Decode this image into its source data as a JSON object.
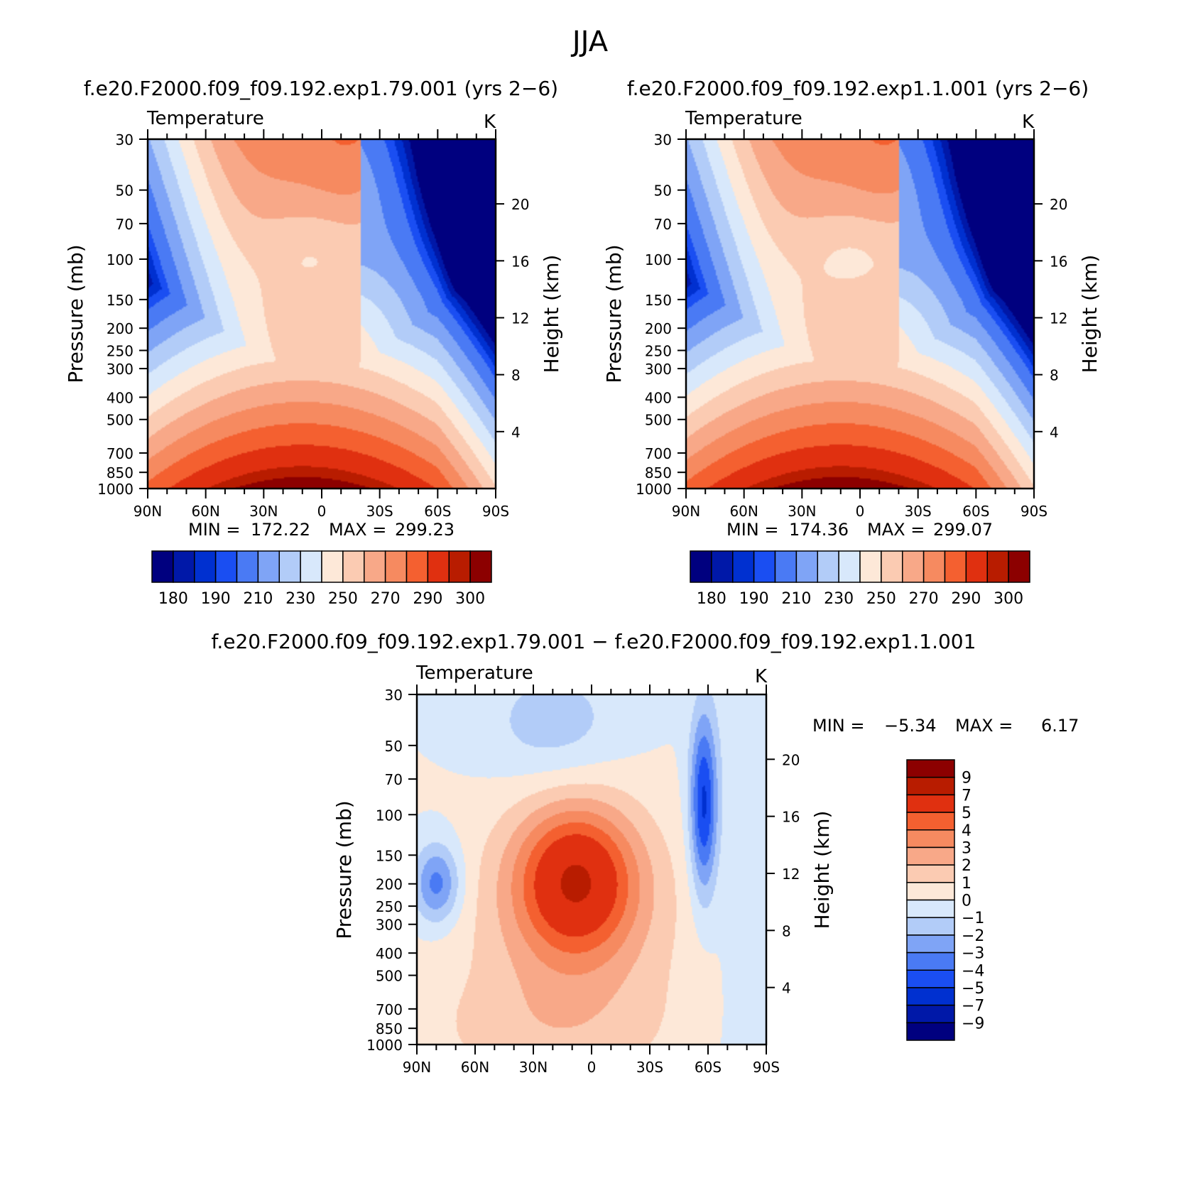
{
  "figure": {
    "title": "JJA"
  },
  "colors": {
    "absolute": [
      "#00007f",
      "#0018a8",
      "#0030d0",
      "#1a4ef2",
      "#4a7af4",
      "#7fa4f6",
      "#b2ccf8",
      "#d8e8fb",
      "#fde8d8",
      "#fbcbb2",
      "#f8a888",
      "#f68a60",
      "#f46030",
      "#e03010",
      "#b81c00",
      "#8c0000"
    ],
    "difference": [
      "#00007f",
      "#0018a8",
      "#0030d0",
      "#1a4ef2",
      "#4a7af4",
      "#7fa4f6",
      "#b2ccf8",
      "#d8e8fb",
      "#fde8d8",
      "#fbcbb2",
      "#f8a888",
      "#f68a60",
      "#f46030",
      "#e03010",
      "#b81c00",
      "#8c0000"
    ]
  },
  "chart_data": [
    {
      "id": "panel_a",
      "type": "heatmap",
      "title": "f.e20.F2000.f09_f09.192.exp1.79.001 (yrs 2-6)",
      "left_label": "Temperature",
      "right_label": "K",
      "xlabel": "",
      "ylabel": "Pressure (mb)",
      "ylabel_right": "Height (km)",
      "x_ticks": [
        "90N",
        "60N",
        "30N",
        "0",
        "30S",
        "60S",
        "90S"
      ],
      "y_ticks": [
        "30",
        "50",
        "70",
        "100",
        "150",
        "200",
        "250",
        "300",
        "400",
        "500",
        "700",
        "850",
        "1000"
      ],
      "height_ticks": [
        "20",
        "16",
        "12",
        "8",
        "4"
      ],
      "stats": {
        "min_label": "MIN =",
        "min": "172.22",
        "max_label": "MAX =",
        "max": "299.23"
      },
      "colorbar_labels": [
        "180",
        "190",
        "210",
        "230",
        "250",
        "270",
        "290",
        "300"
      ],
      "levels": [
        175,
        180,
        185,
        190,
        200,
        210,
        220,
        230,
        240,
        250,
        260,
        270,
        280,
        290,
        295
      ],
      "xlim": [
        90,
        -90
      ],
      "ylim": [
        1000,
        30
      ],
      "field": "T_a"
    },
    {
      "id": "panel_b",
      "type": "heatmap",
      "title": "f.e20.F2000.f09_f09.192.exp1.1.001 (yrs 2-6)",
      "left_label": "Temperature",
      "right_label": "K",
      "xlabel": "",
      "ylabel": "Pressure (mb)",
      "ylabel_right": "Height (km)",
      "x_ticks": [
        "90N",
        "60N",
        "30N",
        "0",
        "30S",
        "60S",
        "90S"
      ],
      "y_ticks": [
        "30",
        "50",
        "70",
        "100",
        "150",
        "200",
        "250",
        "300",
        "400",
        "500",
        "700",
        "850",
        "1000"
      ],
      "height_ticks": [
        "20",
        "16",
        "12",
        "8",
        "4"
      ],
      "stats": {
        "min_label": "MIN =",
        "min": "174.36",
        "max_label": "MAX =",
        "max": "299.07"
      },
      "colorbar_labels": [
        "180",
        "190",
        "210",
        "230",
        "250",
        "270",
        "290",
        "300"
      ],
      "levels": [
        175,
        180,
        185,
        190,
        200,
        210,
        220,
        230,
        240,
        250,
        260,
        270,
        280,
        290,
        295
      ],
      "xlim": [
        90,
        -90
      ],
      "ylim": [
        1000,
        30
      ],
      "field": "T_b"
    },
    {
      "id": "panel_diff",
      "type": "heatmap",
      "title": "f.e20.F2000.f09_f09.192.exp1.79.001 - f.e20.F2000.f09_f09.192.exp1.1.001",
      "left_label": "Temperature",
      "right_label": "K",
      "xlabel": "",
      "ylabel": "Pressure (mb)",
      "ylabel_right": "Height (km)",
      "x_ticks": [
        "90N",
        "60N",
        "30N",
        "0",
        "30S",
        "60S",
        "90S"
      ],
      "y_ticks": [
        "30",
        "50",
        "70",
        "100",
        "150",
        "200",
        "250",
        "300",
        "400",
        "500",
        "700",
        "850",
        "1000"
      ],
      "height_ticks": [
        "20",
        "16",
        "12",
        "8",
        "4"
      ],
      "stats": {
        "min_label": "MIN =",
        "min": "-5.34",
        "max_label": "MAX =",
        "max": "6.17"
      },
      "colorbar_labels": [
        "9",
        "7",
        "5",
        "4",
        "3",
        "2",
        "1",
        "0",
        "-1",
        "-2",
        "-3",
        "-4",
        "-5",
        "-7",
        "-9"
      ],
      "levels": [
        -9,
        -7,
        -5,
        -4,
        -3,
        -2,
        -1,
        0,
        1,
        2,
        3,
        4,
        5,
        7,
        9
      ],
      "xlim": [
        90,
        -90
      ],
      "ylim": [
        1000,
        30
      ],
      "field": "dT"
    }
  ]
}
